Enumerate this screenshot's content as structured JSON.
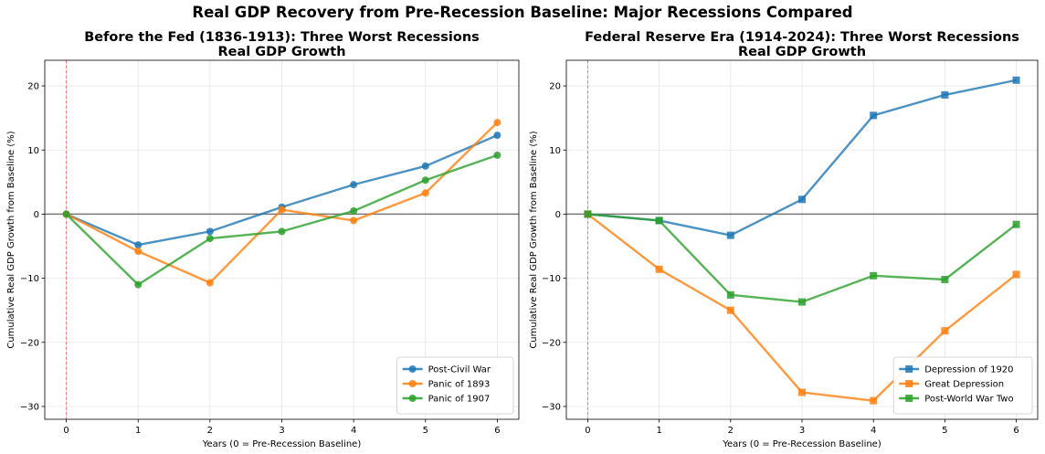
{
  "figure": {
    "suptitle": "Real GDP Recovery from Pre-Recession Baseline: Major Recessions Compared"
  },
  "chart_data": [
    {
      "type": "line",
      "title_line1": "Before the Fed (1836-1913): Three Worst Recessions",
      "title_line2": "Real GDP Growth",
      "xlabel": "Years (0 = Pre-Recession Baseline)",
      "ylabel": "Cumulative Real GDP Growth from Baseline (%)",
      "x": [
        0,
        1,
        2,
        3,
        4,
        5,
        6
      ],
      "xlim": [
        -0.3,
        6.3
      ],
      "ylim": [
        -32,
        24
      ],
      "xticks": [
        "0",
        "1",
        "2",
        "3",
        "4",
        "5",
        "6"
      ],
      "yticks": [
        -30,
        -20,
        -10,
        0,
        10,
        20
      ],
      "ytick_labels": [
        "−30",
        "−20",
        "−10",
        "0",
        "10",
        "20"
      ],
      "grid": true,
      "marker": "circle",
      "legend_position": "lower-right",
      "series": [
        {
          "name": "Post-Civil War",
          "color": "#1f77b4",
          "values": [
            0,
            -4.8,
            -2.7,
            1.1,
            4.6,
            7.5,
            12.3
          ]
        },
        {
          "name": "Panic of 1893",
          "color": "#ff7f0e",
          "values": [
            0,
            -5.8,
            -10.7,
            0.7,
            -1.0,
            3.3,
            14.3
          ]
        },
        {
          "name": "Panic of 1907",
          "color": "#2ca02c",
          "values": [
            0,
            -11.0,
            -3.8,
            -2.7,
            0.5,
            5.3,
            9.2
          ]
        }
      ]
    },
    {
      "type": "line",
      "title_line1": "Federal Reserve Era (1914-2024): Three Worst Recessions",
      "title_line2": "Real GDP Growth",
      "xlabel": "Years (0 = Pre-Recession Baseline)",
      "ylabel": "Cumulative Real GDP Growth from Baseline (%)",
      "x": [
        0,
        1,
        2,
        3,
        4,
        5,
        6
      ],
      "xlim": [
        -0.3,
        6.3
      ],
      "ylim": [
        -32,
        24
      ],
      "xticks": [
        "0",
        "1",
        "2",
        "3",
        "4",
        "5",
        "6"
      ],
      "yticks": [
        -30,
        -20,
        -10,
        0,
        10,
        20
      ],
      "ytick_labels": [
        "−30",
        "−20",
        "−10",
        "0",
        "10",
        "20"
      ],
      "grid": true,
      "marker": "square",
      "legend_position": "lower-right",
      "series": [
        {
          "name": "Depression of 1920",
          "color": "#1f77b4",
          "values": [
            0,
            -1.0,
            -3.3,
            2.3,
            15.4,
            18.6,
            20.9
          ]
        },
        {
          "name": "Great Depression",
          "color": "#ff7f0e",
          "values": [
            0,
            -8.6,
            -15.0,
            -27.8,
            -29.1,
            -18.2,
            -9.4
          ]
        },
        {
          "name": "Post-World War Two",
          "color": "#2ca02c",
          "values": [
            0,
            -1.0,
            -12.6,
            -13.7,
            -9.6,
            -10.2,
            -1.6
          ]
        }
      ]
    }
  ]
}
